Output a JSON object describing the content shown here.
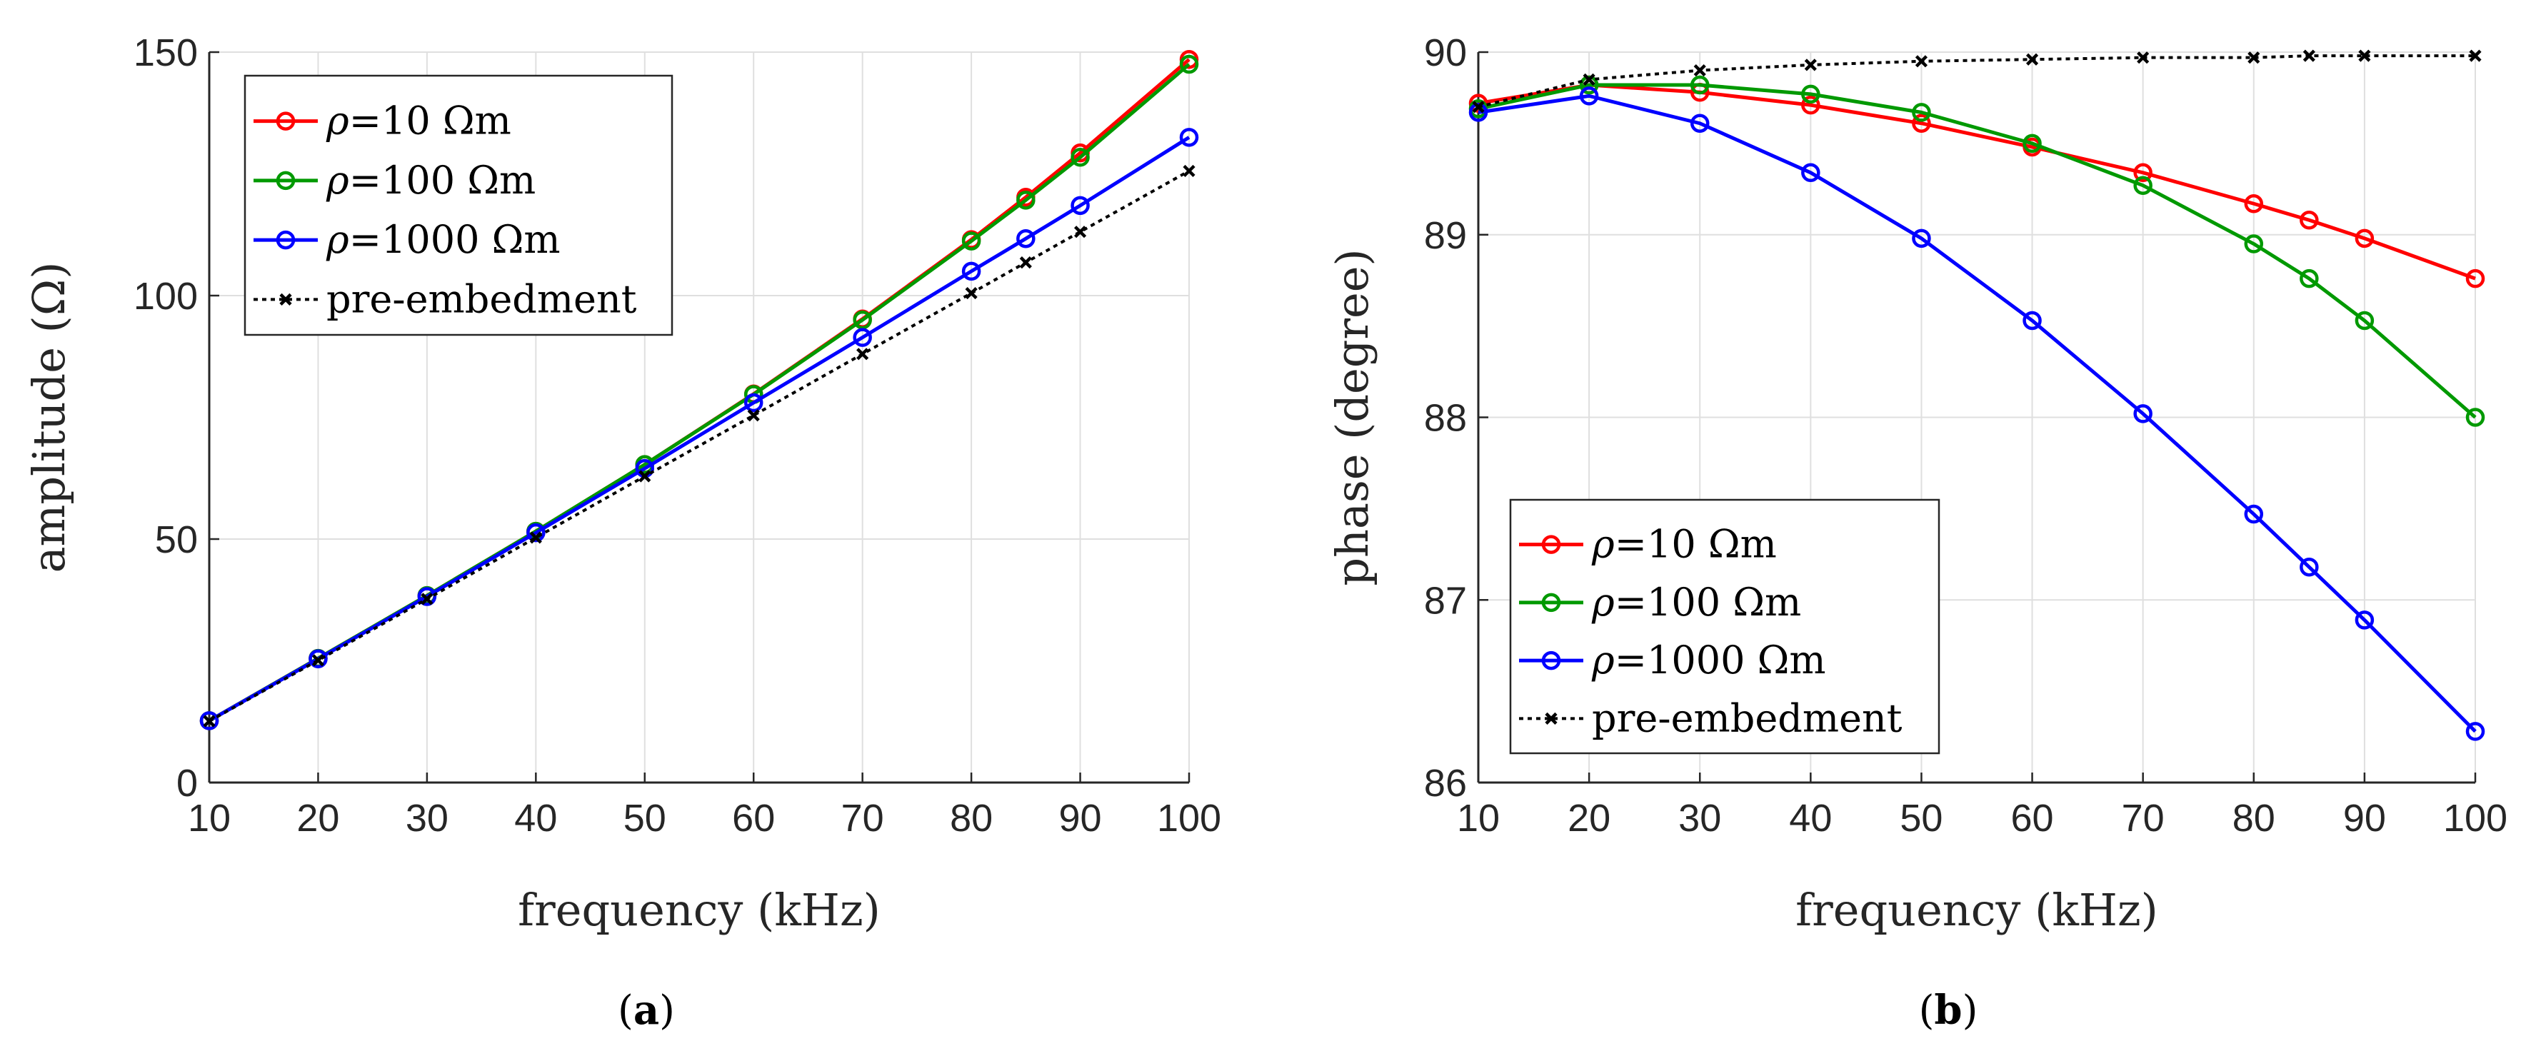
{
  "colors": {
    "rho10": "#ff0000",
    "rho100": "#009900",
    "rho1000": "#0000ff",
    "pre": "#000000",
    "grid": "#dfdfdf"
  },
  "captions": {
    "a_open": "(",
    "a_letter": "a",
    "a_close": ")",
    "b_open": "(",
    "b_letter": "b",
    "b_close": ")"
  },
  "chart_data": [
    {
      "type": "line",
      "caption": "(a)",
      "xlabel": "frequency (kHz)",
      "ylabel": "amplitude (Ω)",
      "x": [
        10,
        20,
        30,
        40,
        50,
        60,
        70,
        80,
        85,
        90,
        100
      ],
      "xlim": [
        10,
        100
      ],
      "ylim": [
        0,
        150
      ],
      "xticks": [
        "10",
        "20",
        "30",
        "40",
        "50",
        "60",
        "70",
        "80",
        "90",
        "100"
      ],
      "yticks": [
        "0",
        "50",
        "100",
        "150"
      ],
      "grid": true,
      "legend_position": "top-left",
      "series": [
        {
          "name": "ρ=10 Ωm",
          "legend_symbol": "ρ",
          "legend_text": "=10 Ωm",
          "color_key": "rho10",
          "marker": "circle",
          "style": "solid",
          "values": [
            12.7,
            25.5,
            38.4,
            51.6,
            65.3,
            79.8,
            95.2,
            111.5,
            120.2,
            129.3,
            148.5
          ]
        },
        {
          "name": "ρ=100 Ωm",
          "legend_symbol": "ρ",
          "legend_text": "=100 Ωm",
          "color_key": "rho100",
          "marker": "circle",
          "style": "solid",
          "values": [
            12.7,
            25.5,
            38.4,
            51.6,
            65.3,
            79.7,
            95.0,
            111.2,
            119.6,
            128.4,
            147.5
          ]
        },
        {
          "name": "ρ=1000 Ωm",
          "legend_symbol": "ρ",
          "legend_text": "=1000 Ωm",
          "color_key": "rho1000",
          "marker": "circle",
          "style": "solid",
          "values": [
            12.7,
            25.4,
            38.2,
            51.3,
            64.5,
            78.0,
            91.4,
            105.0,
            111.7,
            118.5,
            132.5
          ]
        },
        {
          "name": "pre-embedment",
          "legend_symbol": "",
          "legend_text": "pre-embedment",
          "color_key": "pre",
          "marker": "x",
          "style": "dotted",
          "values": [
            12.6,
            25.1,
            37.7,
            50.3,
            62.9,
            75.4,
            88.0,
            100.5,
            106.8,
            113.1,
            125.6
          ]
        }
      ]
    },
    {
      "type": "line",
      "caption": "(b)",
      "xlabel": "frequency (kHz)",
      "ylabel": "phase (degree)",
      "x": [
        10,
        20,
        30,
        40,
        50,
        60,
        70,
        80,
        85,
        90,
        100
      ],
      "xlim": [
        10,
        100
      ],
      "ylim": [
        86,
        90
      ],
      "xticks": [
        "10",
        "20",
        "30",
        "40",
        "50",
        "60",
        "70",
        "80",
        "90",
        "100"
      ],
      "yticks": [
        "86",
        "87",
        "88",
        "89",
        "90"
      ],
      "grid": true,
      "legend_position": "bottom-left",
      "series": [
        {
          "name": "ρ=10 Ωm",
          "legend_symbol": "ρ",
          "legend_text": "=10 Ωm",
          "color_key": "rho10",
          "marker": "circle",
          "style": "solid",
          "values": [
            89.72,
            89.82,
            89.78,
            89.71,
            89.61,
            89.48,
            89.34,
            89.17,
            89.08,
            88.98,
            88.76
          ]
        },
        {
          "name": "ρ=100 Ωm",
          "legend_symbol": "ρ",
          "legend_text": "=100 Ωm",
          "color_key": "rho100",
          "marker": "circle",
          "style": "solid",
          "values": [
            89.69,
            89.82,
            89.82,
            89.77,
            89.67,
            89.5,
            89.27,
            88.95,
            88.76,
            88.53,
            88.0
          ]
        },
        {
          "name": "ρ=1000 Ωm",
          "legend_symbol": "ρ",
          "legend_text": "=1000 Ωm",
          "color_key": "rho1000",
          "marker": "circle",
          "style": "solid",
          "values": [
            89.67,
            89.76,
            89.61,
            89.34,
            88.98,
            88.53,
            88.02,
            87.47,
            87.18,
            86.89,
            86.28
          ]
        },
        {
          "name": "pre-embedment",
          "legend_symbol": "",
          "legend_text": "pre-embedment",
          "color_key": "pre",
          "marker": "x",
          "style": "dotted",
          "values": [
            89.7,
            89.85,
            89.9,
            89.93,
            89.95,
            89.96,
            89.97,
            89.97,
            89.98,
            89.98,
            89.98
          ]
        }
      ]
    }
  ]
}
